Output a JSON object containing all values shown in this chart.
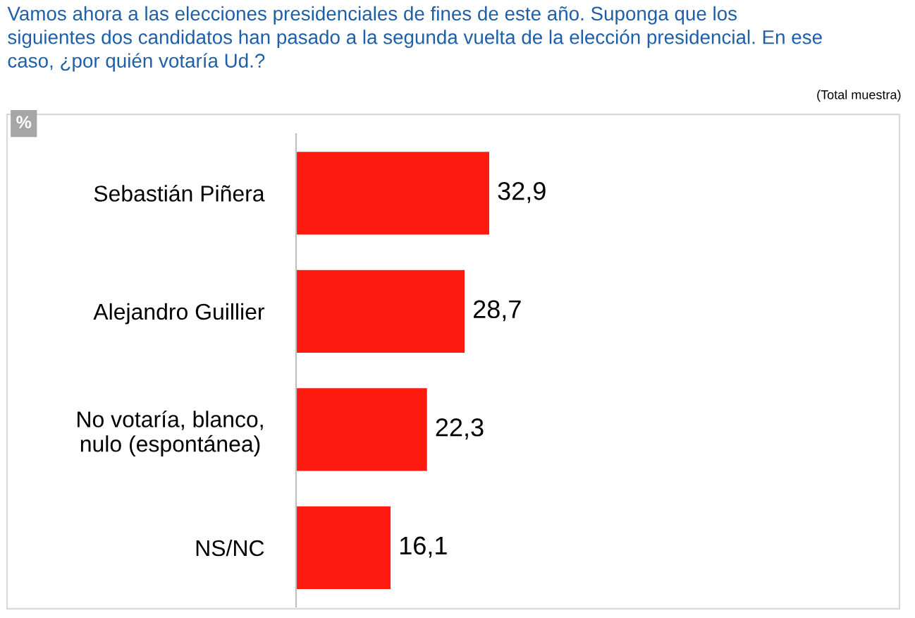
{
  "chart_data": {
    "type": "bar",
    "orientation": "horizontal",
    "title": "Vamos ahora a las elecciones presidenciales de fines de este año. Suponga que los\nsiguientes dos candidatos han pasado a la segunda vuelta de la elección presidencial. En ese\ncaso, ¿por quién votaría Ud.?",
    "categories": [
      "Sebastián Piñera",
      "Alejandro Guillier",
      "No votaría, blanco,\nnulo (espontánea)",
      "NS/NC"
    ],
    "values": [
      32.9,
      28.7,
      22.3,
      16.1
    ],
    "value_labels": [
      "32,9",
      "28,7",
      "22,3",
      "16,1"
    ],
    "color": "#ff1a10",
    "annotations": [
      "(Total muestra)",
      "%"
    ],
    "grid": false,
    "legend": false
  }
}
